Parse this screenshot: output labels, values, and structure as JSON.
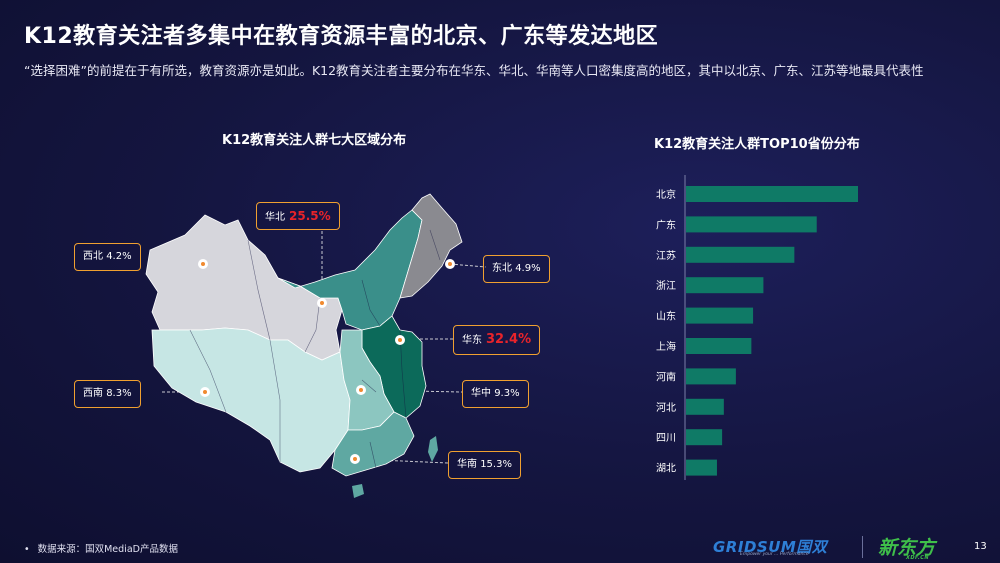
{
  "header": {
    "title": "K12教育关注者多集中在教育资源丰富的北京、广东等发达地区",
    "subtitle": "“选择困难”的前提在于有所选，教育资源亦是如此。K12教育关注者主要分布在华东、华北、华南等人口密集度高的地区，其中以北京、广东、江苏等地最具代表性"
  },
  "map_title": "K12教育关注人群七大区域分布",
  "bar_title": "K12教育关注人群TOP10省份分布",
  "chart_data": [
    {
      "type": "map",
      "title": "K12教育关注人群七大区域分布",
      "regions": [
        {
          "name": "华北",
          "value": 25.5,
          "label": "25.5%",
          "highlight": true,
          "color": "#3a8f8a"
        },
        {
          "name": "西北",
          "value": 4.2,
          "label": "4.2%",
          "highlight": false,
          "color": "#d6d6dc"
        },
        {
          "name": "东北",
          "value": 4.9,
          "label": "4.9%",
          "highlight": false,
          "color": "#8a8a90"
        },
        {
          "name": "华东",
          "value": 32.4,
          "label": "32.4%",
          "highlight": true,
          "color": "#0c6a5a"
        },
        {
          "name": "西南",
          "value": 8.3,
          "label": "8.3%",
          "highlight": false,
          "color": "#c6e6e4"
        },
        {
          "name": "华中",
          "value": 9.3,
          "label": "9.3%",
          "highlight": false,
          "color": "#8cc6c0"
        },
        {
          "name": "华南",
          "value": 15.3,
          "label": "15.3%",
          "highlight": false,
          "color": "#5fa8a2"
        }
      ]
    },
    {
      "type": "bar",
      "orientation": "horizontal",
      "title": "K12教育关注人群TOP10省份分布",
      "categories": [
        "北京",
        "广东",
        "江苏",
        "浙江",
        "山东",
        "上海",
        "河南",
        "河北",
        "四川",
        "湖北"
      ],
      "values": [
        100,
        76,
        63,
        45,
        39,
        38,
        29,
        22,
        21,
        18
      ],
      "bar_color": "#0f7a66"
    }
  ],
  "footer": {
    "bullet": "•",
    "source": "数据来源：国双MediaD产品数据",
    "logo_gridsum": "GRIDSUM国双",
    "logo_gridsum_tag": "Empower your ... Performance",
    "logo_xdf": "新东方",
    "logo_xdf_tag": "XDF.CN",
    "page_number": "13"
  }
}
